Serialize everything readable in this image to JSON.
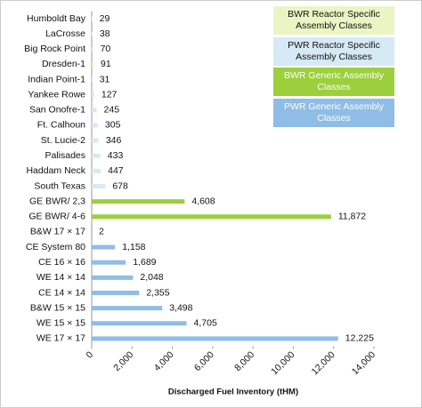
{
  "chart_data": {
    "type": "hbar",
    "categories": [
      "Humboldt Bay",
      "LaCrosse",
      "Big Rock Point",
      "Dresden-1",
      "Indian Point-1",
      "Yankee Rowe",
      "San Onofre-1",
      "Ft. Calhoun",
      "St. Lucie-2",
      "Palisades",
      "Haddam Neck",
      "South Texas",
      "GE BWR/ 2,3",
      "GE BWR/ 4-6",
      "B&W 17 × 17",
      "CE System 80",
      "CE 16 × 16",
      "WE 14 × 14",
      "CE 14 × 14",
      "B&W 15 × 15",
      "WE 15 × 15",
      "WE 17 × 17"
    ],
    "series": [
      {
        "name": "BWR Reactor Specific Assembly Classes",
        "color": "#eaf5c4",
        "text_color": "#111111",
        "values": [
          29,
          38,
          70,
          91,
          null,
          null,
          null,
          null,
          null,
          null,
          null,
          null,
          null,
          null,
          null,
          null,
          null,
          null,
          null,
          null,
          null,
          null
        ]
      },
      {
        "name": "PWR Reactor Specific Assembly Classes",
        "color": "#d6eaf6",
        "text_color": "#111111",
        "values": [
          null,
          null,
          null,
          null,
          31,
          127,
          245,
          305,
          346,
          433,
          447,
          678,
          null,
          null,
          null,
          null,
          null,
          null,
          null,
          null,
          null,
          null
        ]
      },
      {
        "name": "BWR Generic Assembly Classes",
        "color": "#9bcf3c",
        "text_color": "#ffffff",
        "values": [
          null,
          null,
          null,
          null,
          null,
          null,
          null,
          null,
          null,
          null,
          null,
          null,
          4608,
          11872,
          null,
          null,
          null,
          null,
          null,
          null,
          null,
          null
        ],
        "value_labels": [
          null,
          null,
          null,
          null,
          null,
          null,
          null,
          null,
          null,
          null,
          null,
          null,
          "4,608",
          "11,872",
          null,
          null,
          null,
          null,
          null,
          null,
          null,
          null
        ]
      },
      {
        "name": "PWR Generic Assembly Classes",
        "color": "#8fbde6",
        "text_color": "#ffffff",
        "values": [
          null,
          null,
          null,
          null,
          null,
          null,
          null,
          null,
          null,
          null,
          null,
          null,
          null,
          null,
          2,
          1158,
          1689,
          2048,
          2355,
          3498,
          4705,
          12225
        ],
        "value_labels": [
          null,
          null,
          null,
          null,
          null,
          null,
          null,
          null,
          null,
          null,
          null,
          null,
          null,
          null,
          null,
          "1,158",
          "1,689",
          "2,048",
          "2,355",
          "3,498",
          "4,705",
          "12,225"
        ]
      }
    ],
    "xlabel": "Discharged Fuel Inventory (tHM)",
    "xlim": [
      0,
      14000
    ],
    "xticks": [
      0,
      {
        "value": 2000,
        "label": "2,000"
      },
      {
        "value": 4000,
        "label": "4,000"
      },
      {
        "value": 6000,
        "label": "6,000"
      },
      {
        "value": 8000,
        "label": "8,000"
      },
      {
        "value": 10000,
        "label": "10,000"
      },
      {
        "value": 12000,
        "label": "12,000"
      },
      {
        "value": 14000,
        "label": "14,000"
      }
    ],
    "grid": false
  }
}
